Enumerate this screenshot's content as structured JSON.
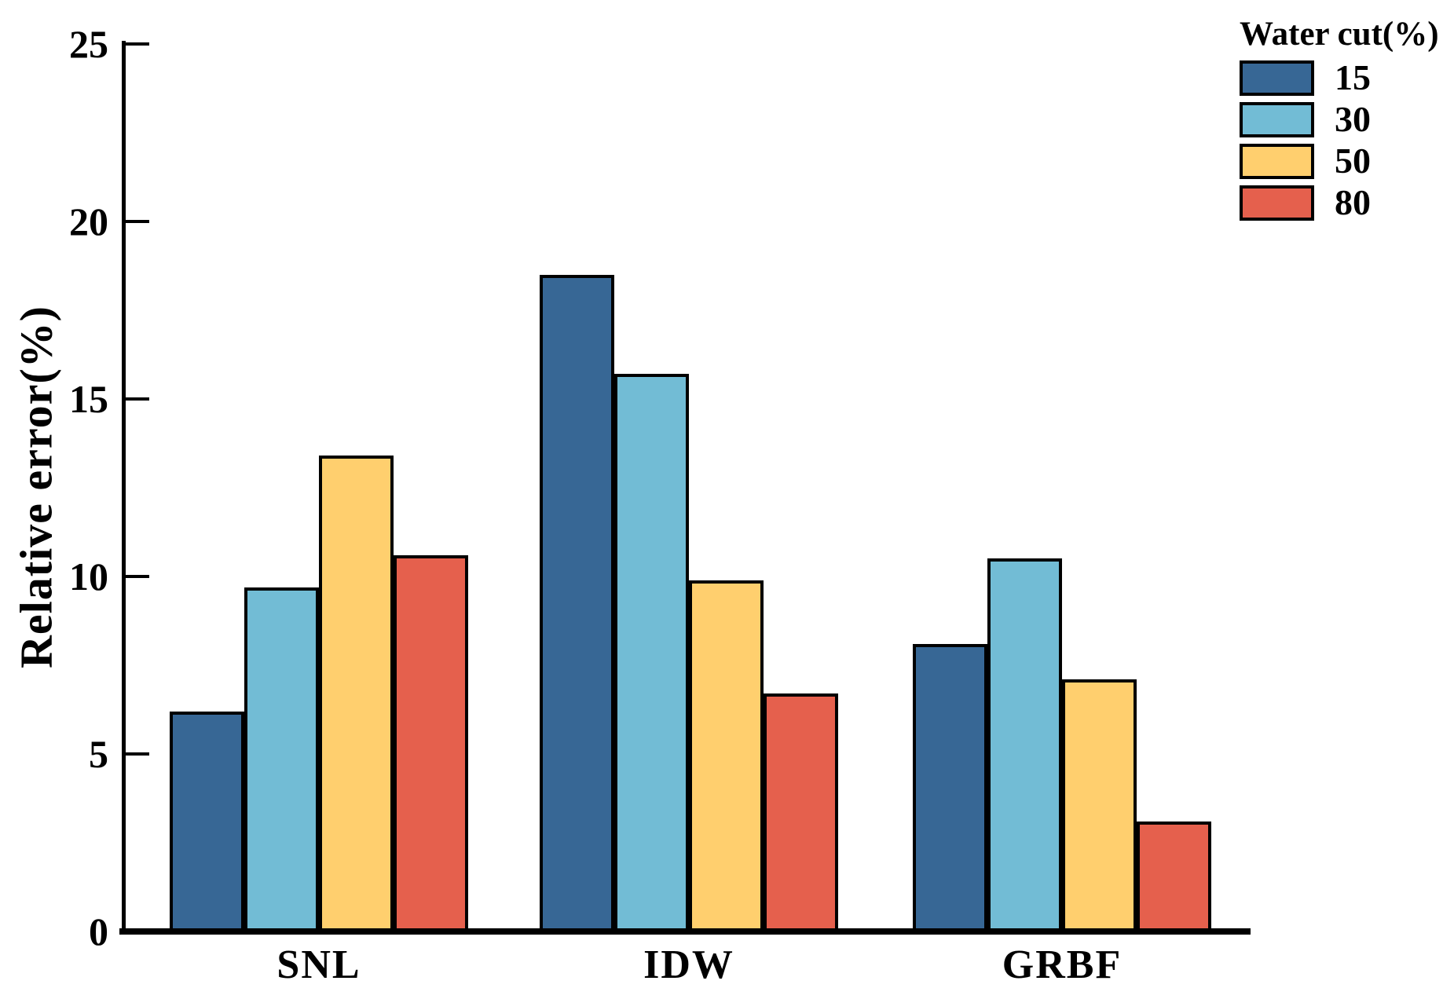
{
  "chart_data": {
    "type": "bar",
    "title": "",
    "ylabel": "Relative error(%)",
    "xlabel": "",
    "categories": [
      "SNL",
      "IDW",
      "GRBF"
    ],
    "series": [
      {
        "name": "15",
        "color": "#376795",
        "values": [
          6.2,
          18.5,
          8.1
        ]
      },
      {
        "name": "30",
        "color": "#72BCD5",
        "values": [
          9.7,
          15.7,
          10.5
        ]
      },
      {
        "name": "50",
        "color": "#FFCF6E",
        "values": [
          13.4,
          9.9,
          7.1
        ]
      },
      {
        "name": "80",
        "color": "#E5604D",
        "values": [
          10.6,
          6.7,
          3.1
        ]
      }
    ],
    "ylim": [
      0,
      25
    ],
    "yticks": [
      0,
      5,
      10,
      15,
      20,
      25
    ],
    "legend_title": "Water cut(%)",
    "legend_position": "top-right",
    "grid": false,
    "bar_edge_color": "#000000",
    "axis_color": "#000000"
  }
}
